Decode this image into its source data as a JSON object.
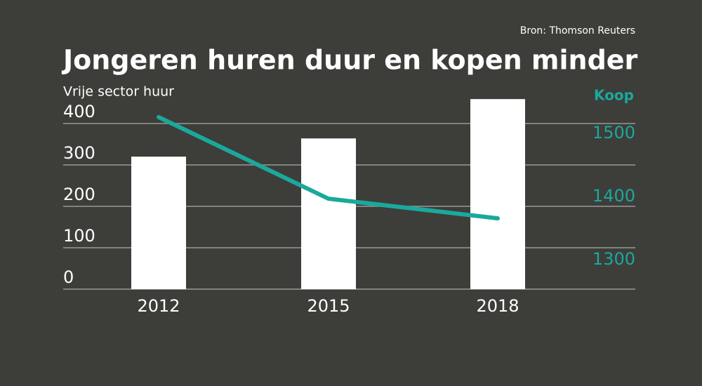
{
  "source": "Bron: Thomson Reuters",
  "chart_data": {
    "type": "bar_line",
    "title": "Jongeren huren duur en kopen minder",
    "y_label": "Vrije sector huur",
    "y2_label": "Koop",
    "categories": [
      "2012",
      "2015",
      "2018"
    ],
    "series": [
      {
        "name": "Vrije sector huur",
        "color": "#ffffff",
        "values": [
          320,
          364,
          459
        ]
      },
      {
        "name": "Koop",
        "color": "#1aa99c",
        "axis": "y2",
        "values": [
          1542,
          1413,
          1382
        ]
      }
    ],
    "ylim": [
      0,
      478
    ],
    "yticks": [
      0,
      100,
      200,
      300,
      400
    ],
    "y2lim": [
      1270,
      1583
    ],
    "y2ticks": [
      1300,
      1400,
      1500
    ],
    "grid": true
  }
}
